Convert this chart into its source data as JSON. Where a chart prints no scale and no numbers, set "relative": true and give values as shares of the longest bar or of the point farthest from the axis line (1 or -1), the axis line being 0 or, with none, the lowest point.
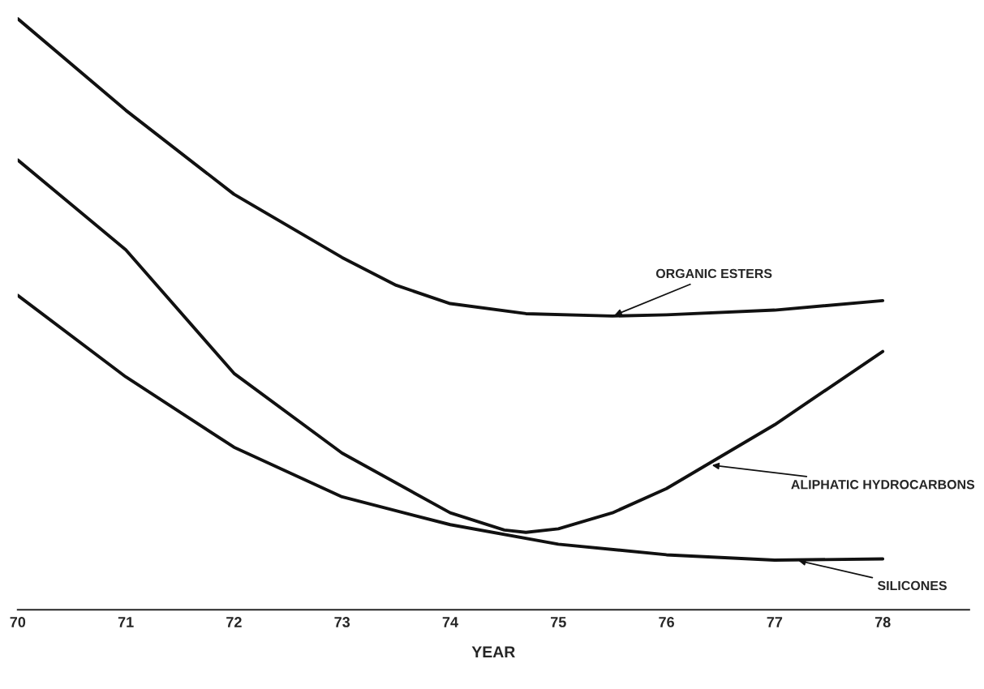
{
  "chart_data": {
    "type": "line",
    "relative": true,
    "xlabel": "YEAR",
    "x": [
      70,
      71,
      72,
      73,
      73.5,
      74,
      74.7,
      75.5,
      76,
      77,
      78
    ],
    "xlim": [
      70,
      78.8
    ],
    "xticks": [
      70,
      71,
      72,
      73,
      74,
      75,
      76,
      77,
      78
    ],
    "tick_labels": "x",
    "grid": false,
    "legend": false,
    "marker": "none",
    "line_style": "solid",
    "series": [
      {
        "color": "#111111",
        "values": [
          1.0,
          0.845,
          0.703,
          0.596,
          0.549,
          0.518,
          0.501,
          0.497,
          0.499,
          0.507,
          0.523
        ]
      },
      {
        "color": "#111111",
        "x": [
          70,
          71,
          72,
          73,
          74,
          74.5,
          74.7,
          75,
          75.5,
          76,
          77,
          78
        ],
        "values": [
          0.761,
          0.609,
          0.4,
          0.265,
          0.164,
          0.135,
          0.131,
          0.137,
          0.164,
          0.205,
          0.313,
          0.437
        ]
      },
      {
        "color": "#111111",
        "x": [
          70,
          71,
          72,
          73,
          74,
          75,
          76,
          77,
          78
        ],
        "values": [
          0.532,
          0.394,
          0.275,
          0.191,
          0.144,
          0.111,
          0.093,
          0.084,
          0.086
        ]
      }
    ],
    "annotations": [
      {
        "text": "ORGANIC ESTERS",
        "x": 75.5,
        "y": 0.497
      },
      {
        "text": "ALIPHATIC HYDROCARBONS",
        "x": 76.4,
        "y": 0.245
      },
      {
        "text": "SILICONES",
        "x": 77.2,
        "y": 0.084
      }
    ]
  }
}
